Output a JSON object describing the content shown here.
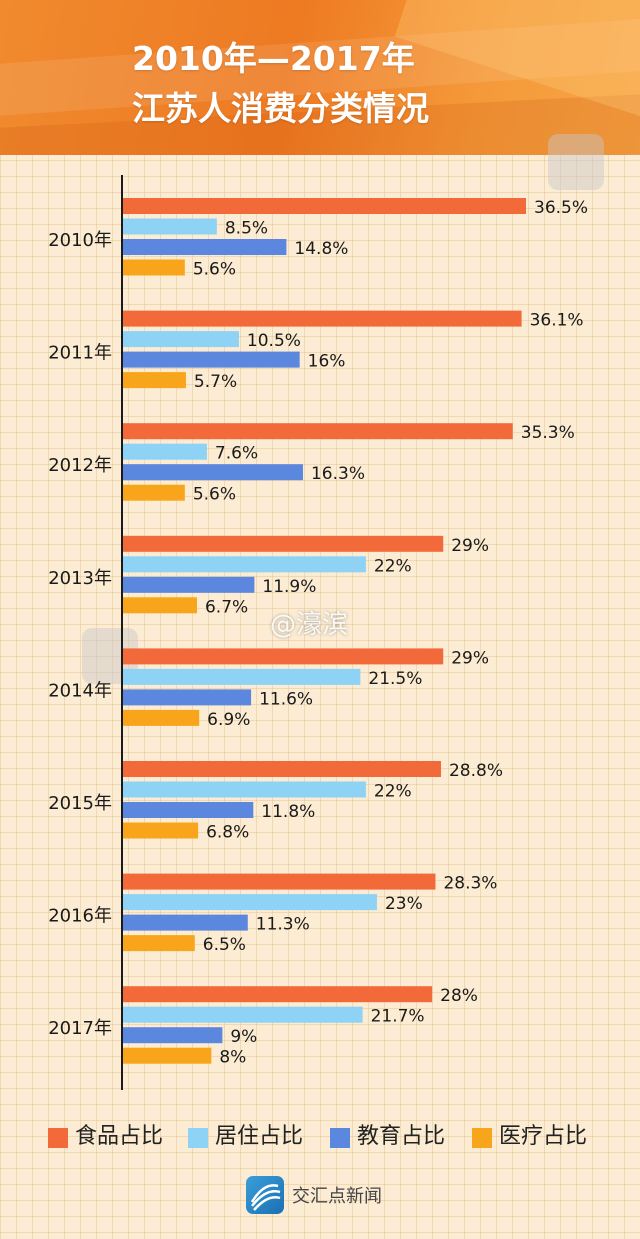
{
  "header": {
    "title_line1": "2010年—2017年",
    "title_line2": "江苏人消费分类情况"
  },
  "colors": {
    "food": "#f26a3a",
    "housing": "#8ed3f5",
    "education": "#5b87de",
    "medical": "#f9a51b"
  },
  "chart_data": {
    "type": "bar",
    "orientation": "horizontal",
    "title": "2010年—2017年 江苏人消费分类情况",
    "categories": [
      "2010年",
      "2011年",
      "2012年",
      "2013年",
      "2014年",
      "2015年",
      "2016年",
      "2017年"
    ],
    "series": [
      {
        "name": "食品占比",
        "key": "food",
        "values": [
          36.5,
          36.1,
          35.3,
          29,
          29,
          28.8,
          28.3,
          28
        ],
        "labels": [
          "36.5%",
          "36.1%",
          "35.3%",
          "29%",
          "29%",
          "28.8%",
          "28.3%",
          "28%"
        ]
      },
      {
        "name": "居住占比",
        "key": "housing",
        "values": [
          8.5,
          10.5,
          7.6,
          22,
          21.5,
          22,
          23,
          21.7
        ],
        "labels": [
          "8.5%",
          "10.5%",
          "7.6%",
          "22%",
          "21.5%",
          "22%",
          "23%",
          "21.7%"
        ]
      },
      {
        "name": "教育占比",
        "key": "education",
        "values": [
          14.8,
          16,
          16.3,
          11.9,
          11.6,
          11.8,
          11.3,
          9
        ],
        "labels": [
          "14.8%",
          "16%",
          "16.3%",
          "11.9%",
          "11.6%",
          "11.8%",
          "11.3%",
          "9%"
        ]
      },
      {
        "name": "医疗占比",
        "key": "medical",
        "values": [
          5.6,
          5.7,
          5.6,
          6.7,
          6.9,
          6.8,
          6.5,
          8
        ],
        "labels": [
          "5.6%",
          "5.7%",
          "5.6%",
          "6.7%",
          "6.9%",
          "6.8%",
          "6.5%",
          "8%"
        ]
      }
    ],
    "unit": "%",
    "legend_position": "bottom",
    "xlim": [
      0,
      36.5
    ]
  },
  "legend": {
    "items": [
      {
        "label": "食品占比",
        "key": "food"
      },
      {
        "label": "居住占比",
        "key": "housing"
      },
      {
        "label": "教育占比",
        "key": "education"
      },
      {
        "label": "医疗占比",
        "key": "medical"
      }
    ]
  },
  "watermark": "@濠滨",
  "footer": {
    "brand": "交汇点新闻"
  }
}
